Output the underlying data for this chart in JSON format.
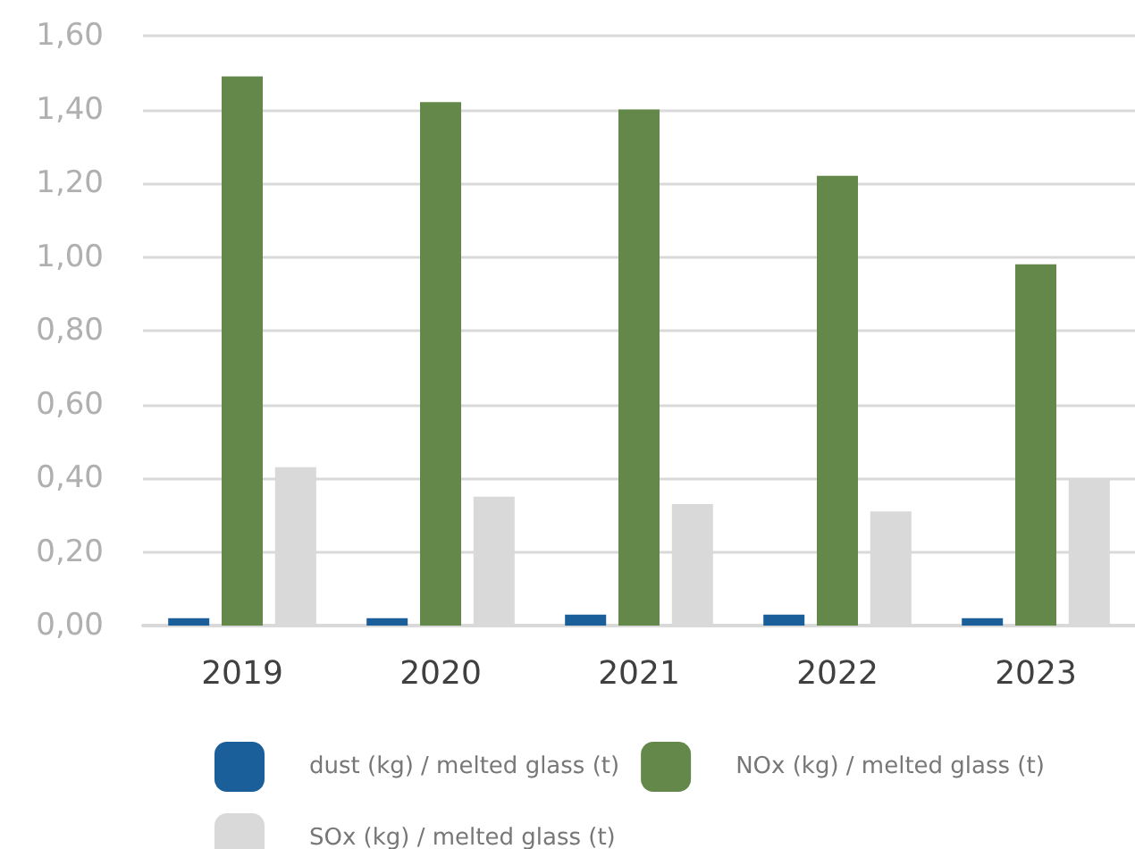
{
  "chart_data": {
    "type": "bar",
    "categories": [
      "2019",
      "2020",
      "2021",
      "2022",
      "2023"
    ],
    "series": [
      {
        "name": "dust (kg) / melted glass (t)",
        "color": "#1a5e9a",
        "values": [
          0.02,
          0.02,
          0.03,
          0.03,
          0.02
        ]
      },
      {
        "name": "NOx (kg) / melted glass (t)",
        "color": "#63884a",
        "values": [
          1.49,
          1.42,
          1.4,
          1.22,
          0.98
        ]
      },
      {
        "name": "SOx (kg) / melted glass (t)",
        "color": "#d9d9d9",
        "values": [
          0.43,
          0.35,
          0.33,
          0.31,
          0.4
        ]
      }
    ],
    "ylim": [
      0,
      1.6
    ],
    "yticks": [
      {
        "value": 0,
        "label": "0,00"
      },
      {
        "value": 0.2,
        "label": "0,20"
      },
      {
        "value": 0.4,
        "label": "0,40"
      },
      {
        "value": 0.6,
        "label": "0,60"
      },
      {
        "value": 0.8,
        "label": "0,80"
      },
      {
        "value": 1,
        "label": "1,00"
      },
      {
        "value": 1.2,
        "label": "1,20"
      },
      {
        "value": 1.4,
        "label": "1,40"
      },
      {
        "value": 1.6,
        "label": "1,60"
      }
    ],
    "grid": "y",
    "legend": "bottom"
  }
}
